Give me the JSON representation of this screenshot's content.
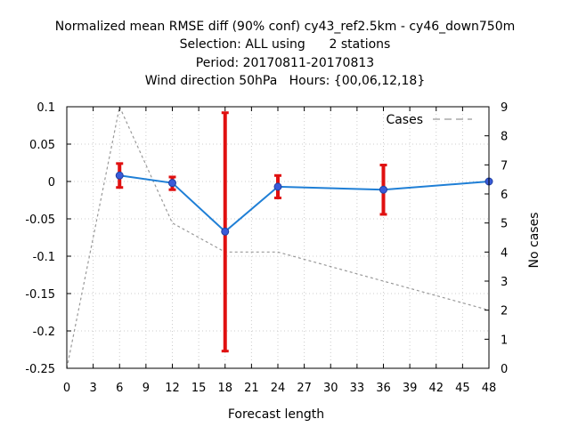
{
  "chart_data": {
    "type": "line",
    "title_lines": [
      "Normalized mean RMSE diff (90% conf) cy43_ref2.5km - cy46_down750m",
      "Selection: ALL using      2 stations",
      "Period: 20170811-20170813",
      "Wind direction 50hPa   Hours: {00,06,12,18}"
    ],
    "xlabel": "Forecast length",
    "ylabel": "",
    "y2label": "No cases",
    "xlim": [
      0,
      48
    ],
    "ylim": [
      -0.25,
      0.1
    ],
    "y2lim": [
      0,
      9
    ],
    "xticks": [
      "0",
      "3",
      "6",
      "9",
      "12",
      "15",
      "18",
      "21",
      "24",
      "27",
      "30",
      "33",
      "36",
      "39",
      "42",
      "45",
      "48"
    ],
    "yticks": [
      "0.1",
      "0.05",
      "0",
      "-0.05",
      "-0.1",
      "-0.15",
      "-0.2",
      "-0.25"
    ],
    "y2ticks": [
      "9",
      "8",
      "7",
      "6",
      "5",
      "4",
      "3",
      "2",
      "1",
      "0"
    ],
    "grid": true,
    "legend_position": "top-right",
    "colors": {
      "rmse_line": "#1f7fd6",
      "rmse_point": "#3a5bd9",
      "errorbar": "#e01010",
      "cases_line": "#999999"
    },
    "series": [
      {
        "key": "rmse_diff",
        "axis": "left",
        "x": [
          6,
          12,
          18,
          24,
          36,
          48
        ],
        "y": [
          0.008,
          -0.002,
          -0.067,
          -0.007,
          -0.011,
          0.0
        ],
        "err_low": [
          -0.008,
          -0.011,
          -0.227,
          -0.022,
          -0.044,
          0.0
        ],
        "err_high": [
          0.024,
          0.006,
          0.092,
          0.008,
          0.022,
          0.0
        ]
      },
      {
        "key": "cases",
        "name": "Cases",
        "axis": "right",
        "x": [
          0,
          6,
          12,
          18,
          24,
          36,
          48
        ],
        "y": [
          0,
          9,
          5,
          4,
          4,
          3,
          2
        ]
      }
    ]
  }
}
